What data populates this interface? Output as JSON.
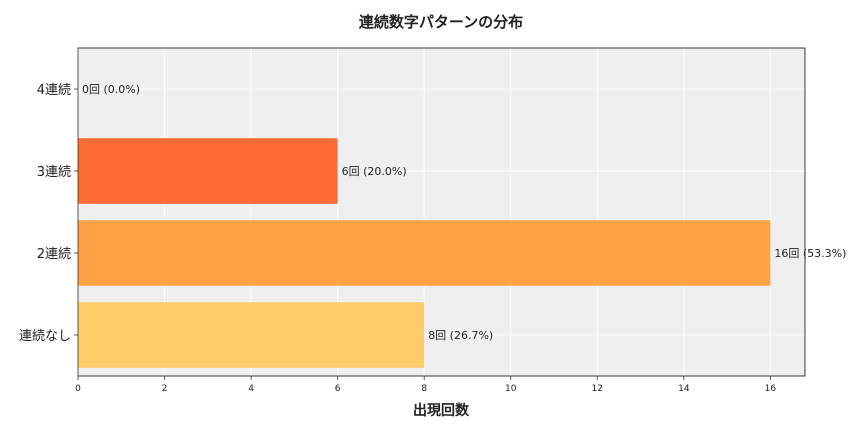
{
  "chart_data": {
    "type": "bar",
    "orientation": "horizontal",
    "title": "連続数字パターンの分布",
    "xlabel": "出現回数",
    "ylabel": "",
    "categories": [
      "4連続",
      "3連続",
      "2連続",
      "連続なし"
    ],
    "values": [
      0,
      6,
      16,
      8
    ],
    "data_labels": [
      "0回 (0.0%)",
      "6回 (20.0%)",
      "16回 (53.3%)",
      "8回 (26.7%)"
    ],
    "colors": [
      "#ff4d2e",
      "#ff6b35",
      "#ffa246",
      "#ffcc6a"
    ],
    "xlim": [
      0,
      16.8
    ],
    "xticks": [
      0,
      2,
      4,
      6,
      8,
      10,
      12,
      14,
      16
    ],
    "grid": true,
    "background": "#efefef"
  }
}
